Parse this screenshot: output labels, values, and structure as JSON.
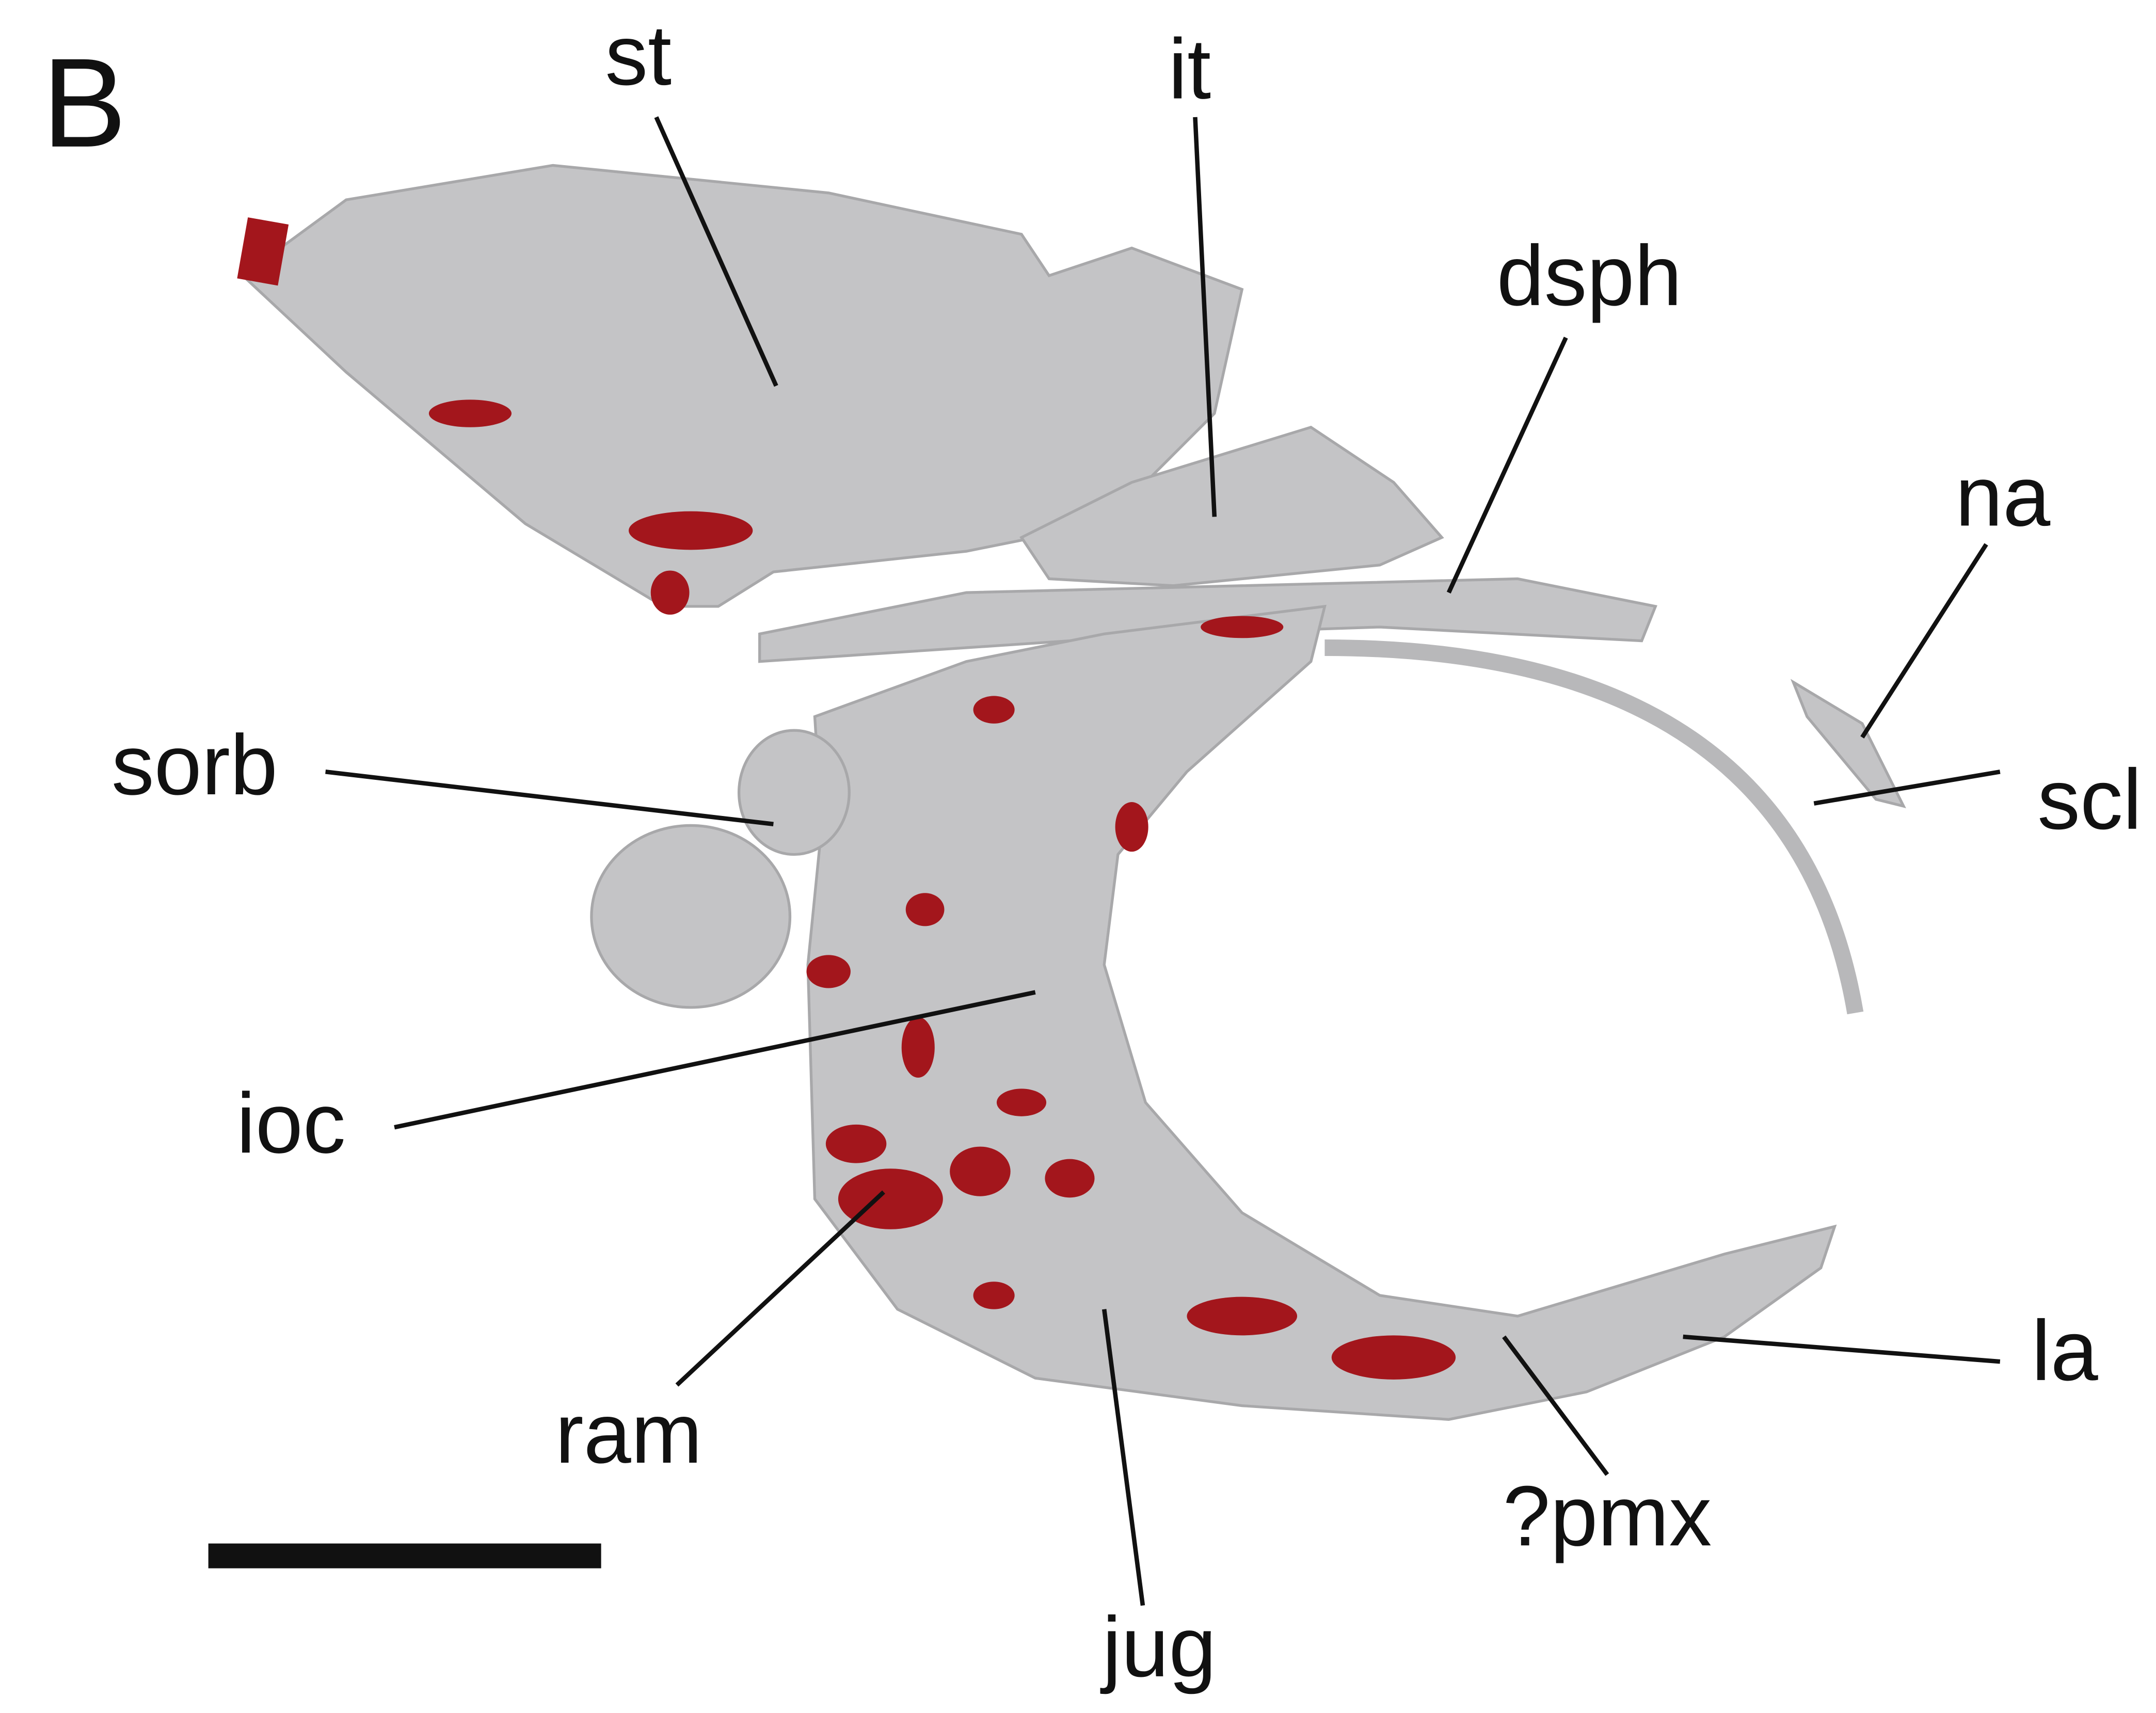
{
  "panel": "B",
  "labels": [
    "st",
    "it",
    "dsph",
    "na",
    "sorb",
    "scl",
    "ioc",
    "ram",
    "jug",
    "?pmx",
    "la"
  ]
}
